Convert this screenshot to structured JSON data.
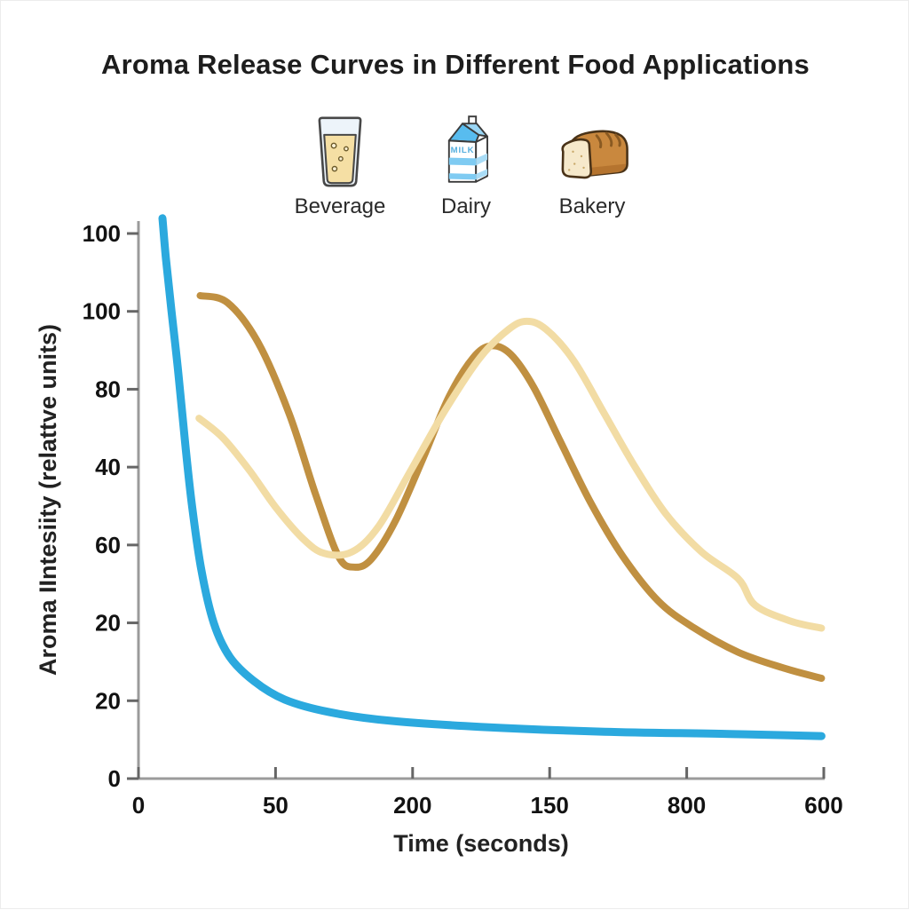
{
  "title": "Aroma Release Curves in Different Food Applications",
  "legend": {
    "items": [
      {
        "label": "Beverage",
        "icon": "beverage-glass-icon"
      },
      {
        "label": "Dairy",
        "icon": "milk-carton-icon",
        "carton_text": "MILK"
      },
      {
        "label": "Bakery",
        "icon": "bread-loaf-icon"
      }
    ]
  },
  "chart_data": {
    "type": "line",
    "title": "Aroma Release Curves in Different Food Applications",
    "xlabel": "Time (seconds)",
    "ylabel": "Aroma IIntesiity (relattve units)",
    "x_tick_labels": [
      "0",
      "50",
      "200",
      "150",
      "800",
      "600"
    ],
    "y_tick_labels": [
      "100",
      "100",
      "80",
      "40",
      "60",
      "20",
      "20",
      "0"
    ],
    "xlim": [
      0,
      600
    ],
    "ylim": [
      0,
      100
    ],
    "grid": false,
    "legend_position": "top-center",
    "axis_color": "#9b9b9b",
    "tick_color": "#666666",
    "series": [
      {
        "name": "Beverage",
        "color": "#2BA9DE",
        "width": 9,
        "points": [
          [
            21,
            102.8
          ],
          [
            24,
            95.4
          ],
          [
            29,
            85.6
          ],
          [
            35,
            74.2
          ],
          [
            41,
            61.2
          ],
          [
            47,
            49.8
          ],
          [
            55,
            38.3
          ],
          [
            66,
            28.5
          ],
          [
            80,
            22.3
          ],
          [
            101,
            17.9
          ],
          [
            128,
            14.5
          ],
          [
            167,
            12.2
          ],
          [
            221,
            10.6
          ],
          [
            299,
            9.5
          ],
          [
            408,
            8.6
          ],
          [
            517,
            8.2
          ],
          [
            598,
            7.8
          ]
        ]
      },
      {
        "name": "Dairy",
        "color": "#C09041",
        "width": 8,
        "points": [
          [
            54,
            88.6
          ],
          [
            78,
            87.3
          ],
          [
            105,
            79.9
          ],
          [
            132,
            66.9
          ],
          [
            155,
            52.2
          ],
          [
            175,
            40.8
          ],
          [
            189,
            38.8
          ],
          [
            204,
            40.3
          ],
          [
            225,
            47.3
          ],
          [
            249,
            58.7
          ],
          [
            272,
            70.1
          ],
          [
            293,
            77.2
          ],
          [
            309,
            79.4
          ],
          [
            326,
            77.8
          ],
          [
            346,
            71.8
          ],
          [
            369,
            62.0
          ],
          [
            396,
            50.6
          ],
          [
            424,
            40.8
          ],
          [
            455,
            32.6
          ],
          [
            486,
            27.7
          ],
          [
            525,
            23.2
          ],
          [
            563,
            20.4
          ],
          [
            598,
            18.4
          ]
        ]
      },
      {
        "name": "Bakery",
        "color": "#F2DCA4",
        "width": 8,
        "points": [
          [
            53,
            66.1
          ],
          [
            74,
            62.5
          ],
          [
            97,
            56.6
          ],
          [
            120,
            49.8
          ],
          [
            144,
            44.0
          ],
          [
            163,
            41.3
          ],
          [
            187,
            41.6
          ],
          [
            210,
            46.2
          ],
          [
            237,
            56.0
          ],
          [
            268,
            67.4
          ],
          [
            299,
            77.2
          ],
          [
            324,
            82.4
          ],
          [
            340,
            83.9
          ],
          [
            357,
            82.4
          ],
          [
            381,
            76.7
          ],
          [
            408,
            66.9
          ],
          [
            435,
            57.1
          ],
          [
            462,
            48.5
          ],
          [
            493,
            41.6
          ],
          [
            525,
            36.7
          ],
          [
            540,
            31.8
          ],
          [
            571,
            28.9
          ],
          [
            598,
            27.6
          ]
        ]
      }
    ]
  }
}
